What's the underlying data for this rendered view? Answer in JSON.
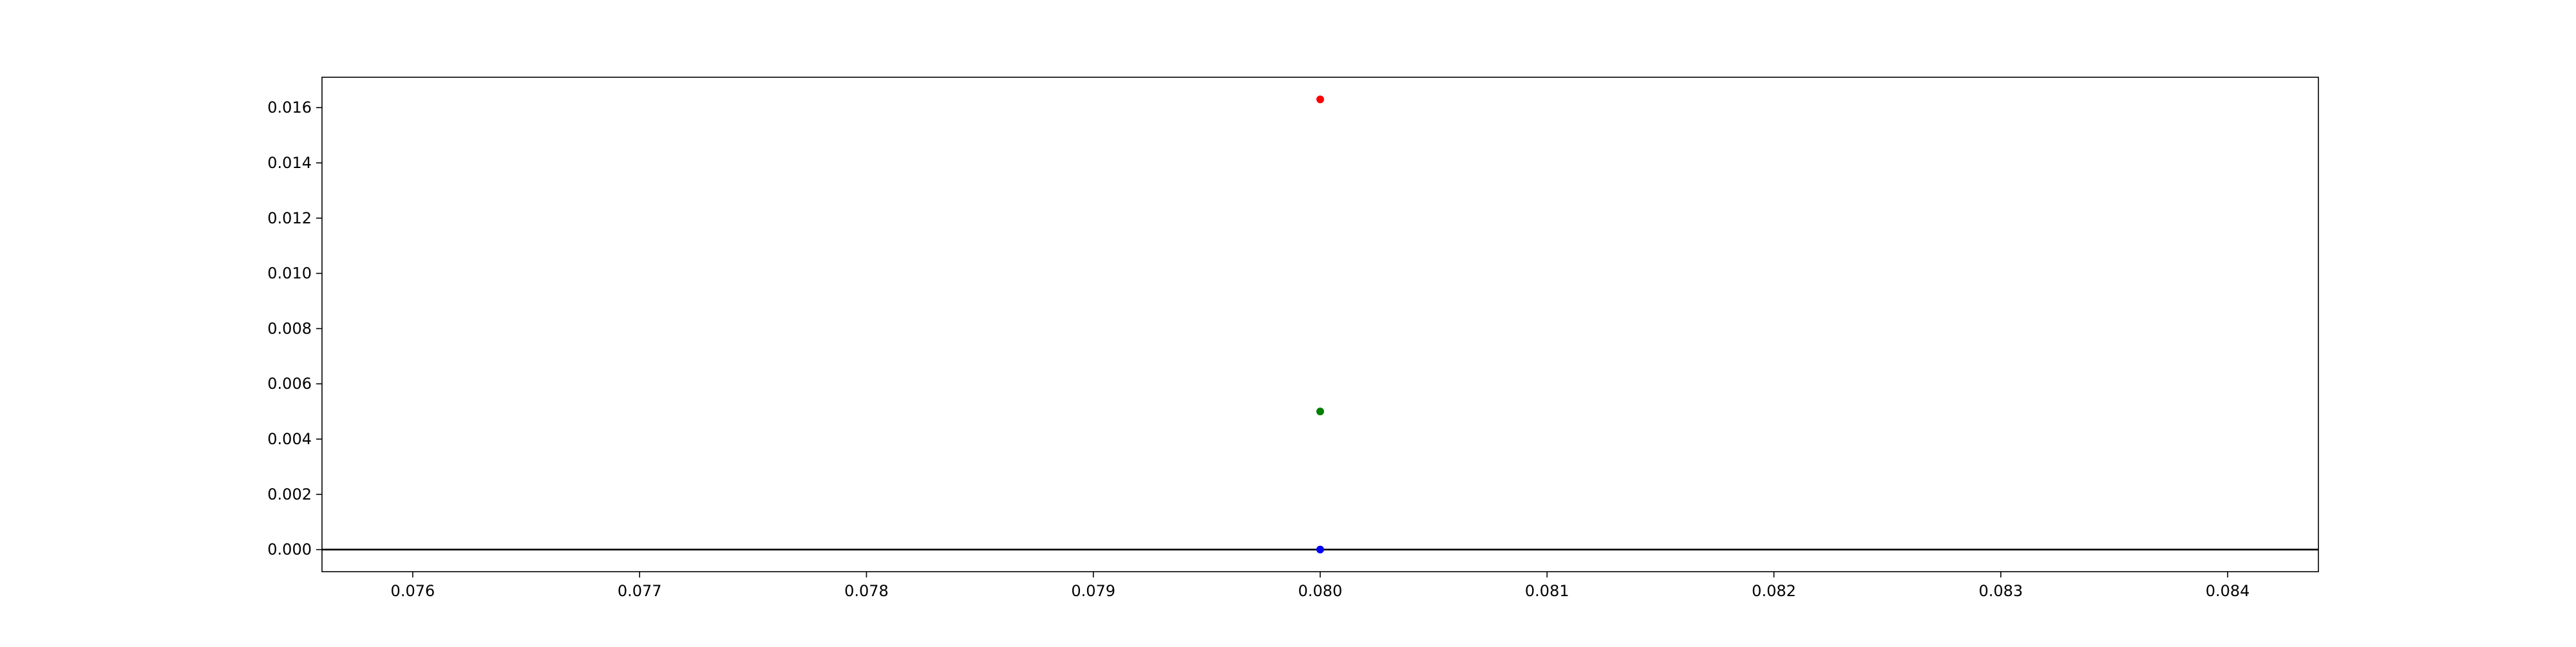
{
  "chart_data": {
    "type": "scatter",
    "title": "",
    "xlabel": "",
    "ylabel": "",
    "xlim": [
      0.0756,
      0.0844
    ],
    "ylim": [
      -0.0008,
      0.0171
    ],
    "grid": false,
    "x_ticks": [
      {
        "value": 0.076,
        "label": "0.076"
      },
      {
        "value": 0.077,
        "label": "0.077"
      },
      {
        "value": 0.078,
        "label": "0.078"
      },
      {
        "value": 0.079,
        "label": "0.079"
      },
      {
        "value": 0.08,
        "label": "0.080"
      },
      {
        "value": 0.081,
        "label": "0.081"
      },
      {
        "value": 0.082,
        "label": "0.082"
      },
      {
        "value": 0.083,
        "label": "0.083"
      },
      {
        "value": 0.084,
        "label": "0.084"
      }
    ],
    "y_ticks": [
      {
        "value": 0.0,
        "label": "0.000"
      },
      {
        "value": 0.002,
        "label": "0.002"
      },
      {
        "value": 0.004,
        "label": "0.004"
      },
      {
        "value": 0.006,
        "label": "0.006"
      },
      {
        "value": 0.008,
        "label": "0.008"
      },
      {
        "value": 0.01,
        "label": "0.010"
      },
      {
        "value": 0.012,
        "label": "0.012"
      },
      {
        "value": 0.014,
        "label": "0.014"
      },
      {
        "value": 0.016,
        "label": "0.016"
      }
    ],
    "reference_lines": [
      {
        "orientation": "horizontal",
        "y": 0.0,
        "color": "#000000"
      }
    ],
    "points": [
      {
        "x": 0.08,
        "y": 0.0163,
        "color": "#ff0000"
      },
      {
        "x": 0.08,
        "y": 0.005,
        "color": "#008000"
      },
      {
        "x": 0.08,
        "y": 0.0,
        "color": "#0000ff"
      }
    ]
  }
}
